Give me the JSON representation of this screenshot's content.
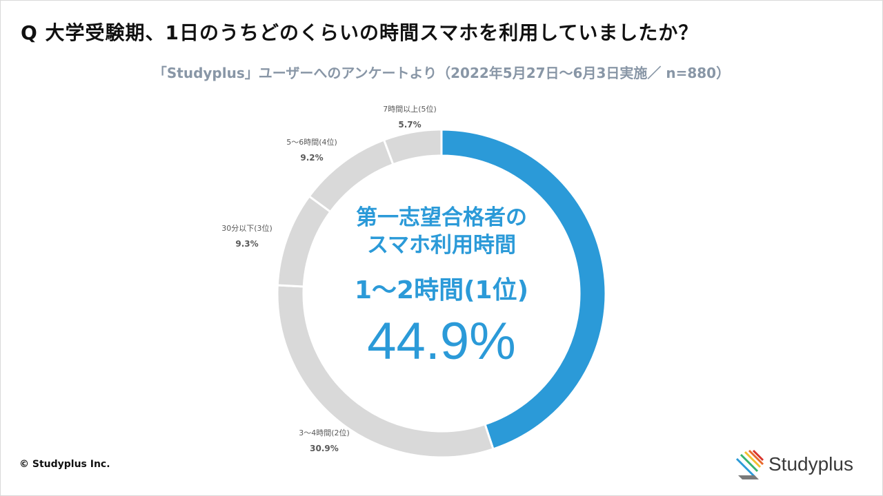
{
  "header": {
    "question": "Q 大学受験期、1日のうちどのくらいの時間スマホを利用していましたか？",
    "subtitle": "「Studyplus」ユーザーへのアンケートより（2022年5月27日～6月3日実施／ n=880）"
  },
  "center": {
    "title_line1": "第一志望合格者の",
    "title_line2": "スマホ利用時間",
    "rank": "1～2時間(1位)",
    "percent": "44.9%"
  },
  "chart_data": {
    "type": "pie",
    "donut": true,
    "start": "top",
    "direction": "clockwise",
    "slices": [
      {
        "label": "1～2時間(1位)",
        "value": 44.9,
        "value_text": "44.9%",
        "color": "#2b9ad8",
        "show_label": false
      },
      {
        "label": "3～4時間(2位)",
        "value": 30.9,
        "value_text": "30.9%",
        "color": "#d9d9d9",
        "show_label": true
      },
      {
        "label": "30分以下(3位)",
        "value": 9.3,
        "value_text": "9.3%",
        "color": "#d9d9d9",
        "show_label": true
      },
      {
        "label": "5～6時間(4位)",
        "value": 9.2,
        "value_text": "9.2%",
        "color": "#d9d9d9",
        "show_label": true
      },
      {
        "label": "7時間以上(5位)",
        "value": 5.7,
        "value_text": "5.7%",
        "color": "#d9d9d9",
        "show_label": true
      }
    ]
  },
  "footer": {
    "copyright": "© Studyplus Inc.",
    "logo_text": "Studyplus"
  },
  "colors": {
    "accent": "#2b9ad8",
    "muted_segment": "#d9d9d9",
    "subtitle": "#8896a6"
  }
}
